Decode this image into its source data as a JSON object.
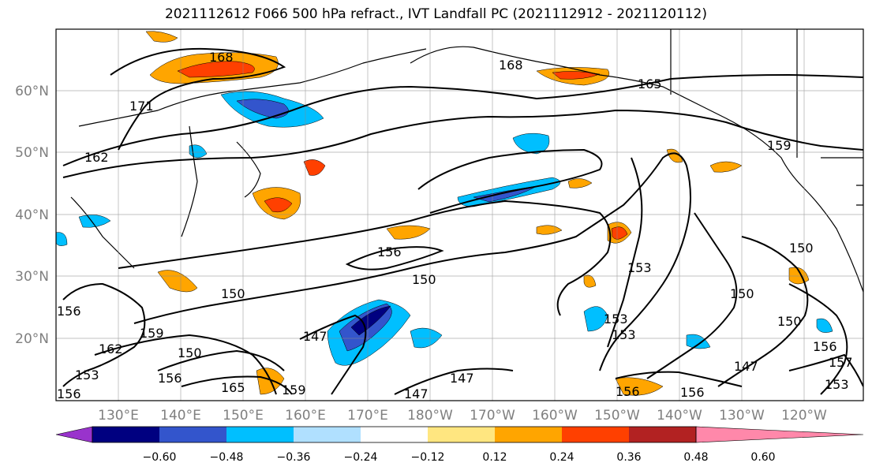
{
  "title": "2021112612 F066 500 hPa refract., IVT Landfall PC (2021112912 - 2021120112)",
  "lat_labels": [
    "60°N",
    "50°N",
    "40°N",
    "30°N",
    "20°N"
  ],
  "lon_labels": [
    "130°E",
    "140°E",
    "150°E",
    "160°E",
    "170°E",
    "180°W",
    "170°W",
    "160°W",
    "150°W",
    "140°W",
    "130°W",
    "120°W"
  ],
  "colorbar": {
    "colors": [
      "#9933cc",
      "#000080",
      "#3355cc",
      "#00bfff",
      "#b0e0ff",
      "#ffffff",
      "#ffe680",
      "#ffa500",
      "#ff4000",
      "#b22222",
      "#ff88aa"
    ],
    "tick_labels": [
      "−0.60",
      "−0.48",
      "−0.36",
      "−0.24",
      "−0.12",
      "0.12",
      "0.24",
      "0.36",
      "0.48",
      "0.60"
    ]
  },
  "contour_labels": [
    "168",
    "168",
    "171",
    "165",
    "162",
    "159",
    "156",
    "150",
    "153",
    "150",
    "147",
    "159",
    "162",
    "150",
    "150",
    "153",
    "156",
    "165",
    "159",
    "147",
    "147",
    "150",
    "156",
    "156",
    "147",
    "156",
    "153",
    "157",
    "153",
    "150",
    "156",
    "156",
    "153"
  ]
}
